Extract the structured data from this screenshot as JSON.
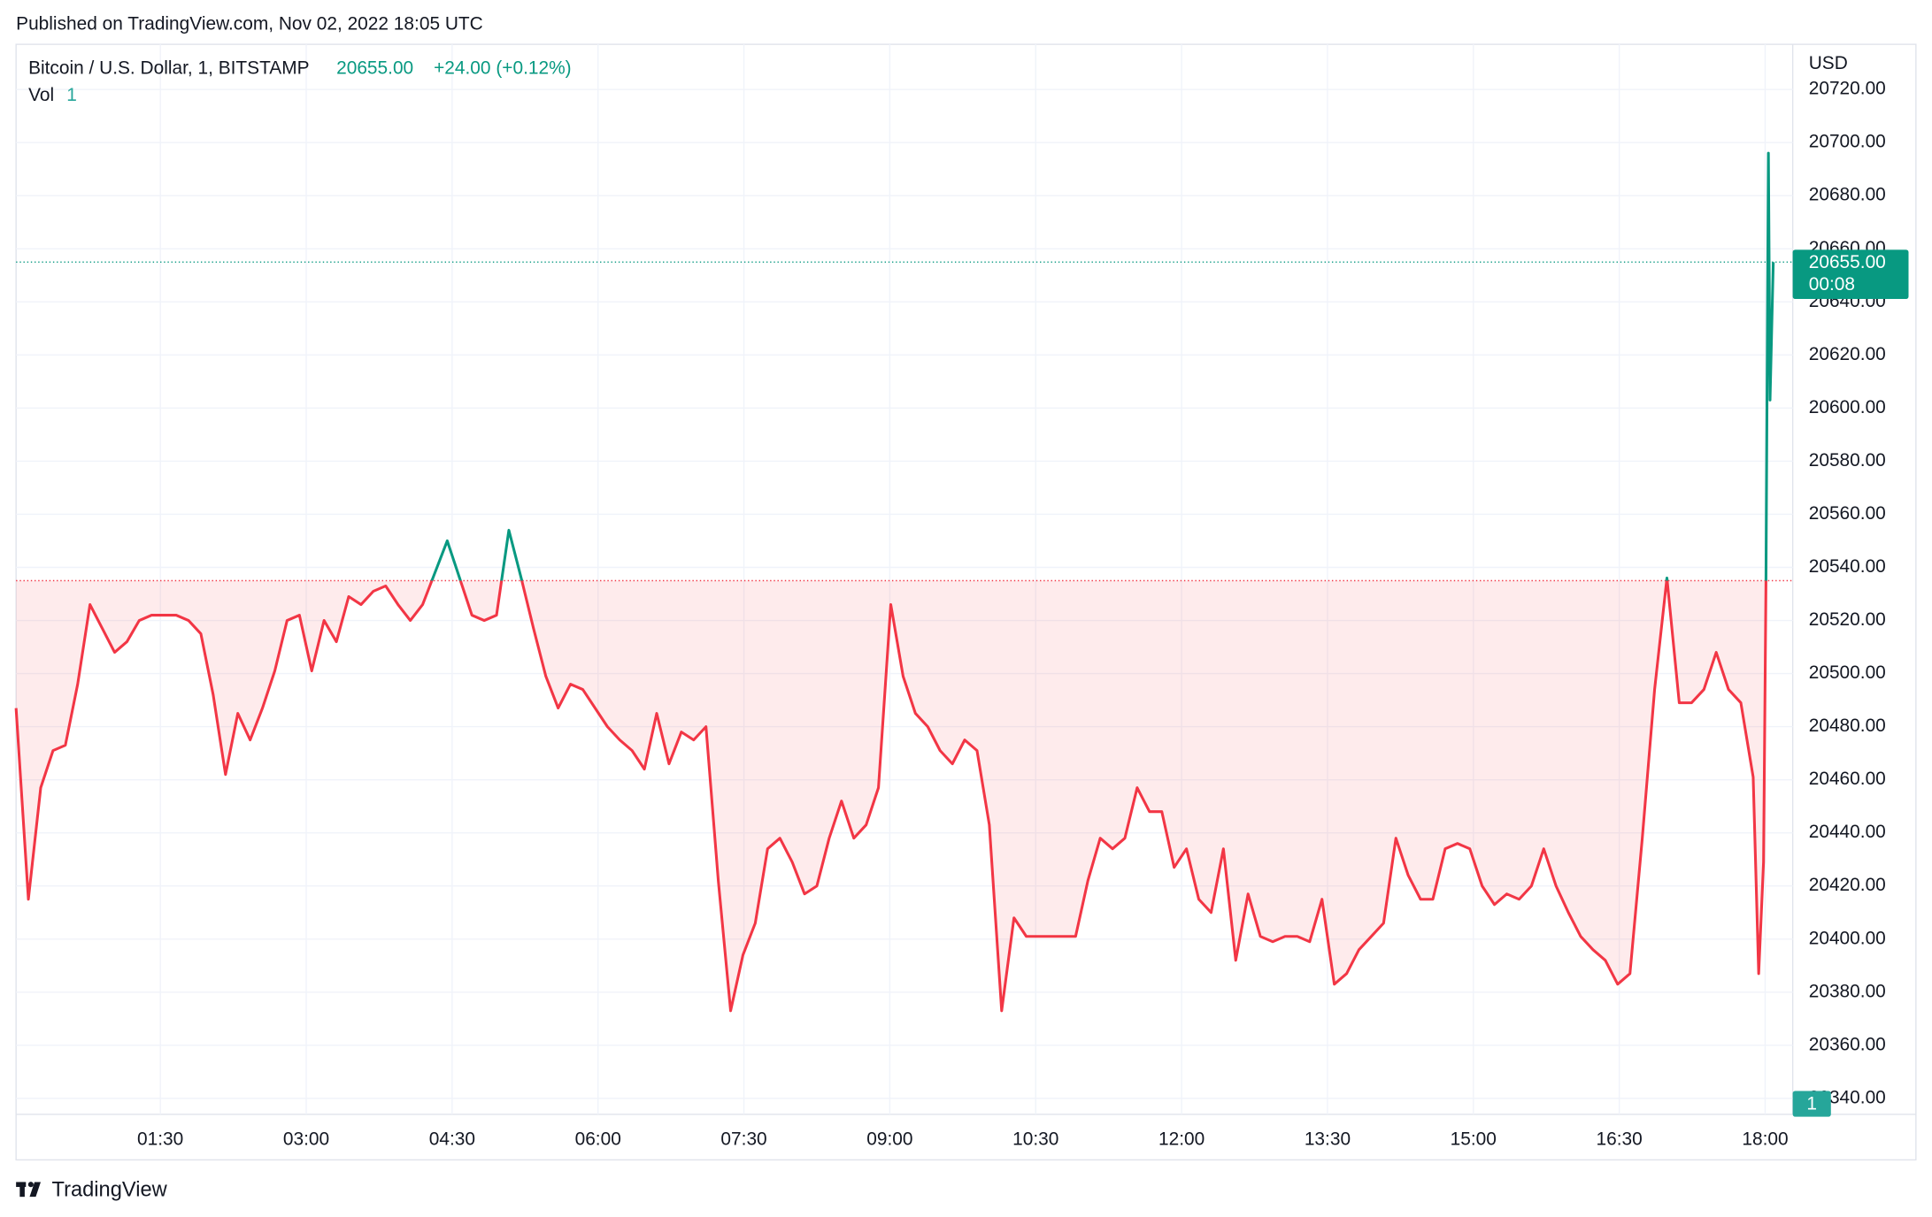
{
  "chart_data": {
    "type": "line",
    "source": "Published on TradingView.com, Nov 02, 2022 18:05 UTC",
    "title": "Bitcoin / U.S. Dollar, 1, BITSTAMP",
    "last_price": {
      "value": 20655,
      "label": "20655.00"
    },
    "change": "+24.00 (+0.12%)",
    "countdown": "00:08",
    "volume_label": "Vol",
    "volume": 1,
    "axis_unit": "USD",
    "footer": "TradingView",
    "baseline": 20535,
    "color_up": "#089981",
    "color_down": "#f23645",
    "grid": true,
    "xlim": [
      1,
      1097
    ],
    "ylim": [
      20334,
      20737
    ],
    "xticks": [
      {
        "value": 90,
        "label": "01:30"
      },
      {
        "value": 180,
        "label": "03:00"
      },
      {
        "value": 270,
        "label": "04:30"
      },
      {
        "value": 360,
        "label": "06:00"
      },
      {
        "value": 450,
        "label": "07:30"
      },
      {
        "value": 540,
        "label": "09:00"
      },
      {
        "value": 630,
        "label": "10:30"
      },
      {
        "value": 720,
        "label": "12:00"
      },
      {
        "value": 810,
        "label": "13:30"
      },
      {
        "value": 900,
        "label": "15:00"
      },
      {
        "value": 990,
        "label": "16:30"
      },
      {
        "value": 1080,
        "label": "18:00"
      }
    ],
    "yticks": [
      {
        "value": 20340,
        "label": "20340.00"
      },
      {
        "value": 20360,
        "label": "20360.00"
      },
      {
        "value": 20380,
        "label": "20380.00"
      },
      {
        "value": 20400,
        "label": "20400.00"
      },
      {
        "value": 20420,
        "label": "20420.00"
      },
      {
        "value": 20440,
        "label": "20440.00"
      },
      {
        "value": 20460,
        "label": "20460.00"
      },
      {
        "value": 20480,
        "label": "20480.00"
      },
      {
        "value": 20500,
        "label": "20500.00"
      },
      {
        "value": 20520,
        "label": "20520.00"
      },
      {
        "value": 20540,
        "label": "20540.00"
      },
      {
        "value": 20560,
        "label": "20560.00"
      },
      {
        "value": 20580,
        "label": "20580.00"
      },
      {
        "value": 20600,
        "label": "20600.00"
      },
      {
        "value": 20620,
        "label": "20620.00"
      },
      {
        "value": 20640,
        "label": "20640.00"
      },
      {
        "value": 20660,
        "label": "20660.00"
      },
      {
        "value": 20680,
        "label": "20680.00"
      },
      {
        "value": 20700,
        "label": "20700.00"
      },
      {
        "value": 20720,
        "label": "20720.00"
      }
    ],
    "x": [
      1,
      8.6,
      16.2,
      23.8,
      31.4,
      39,
      46.6,
      54.2,
      61.8,
      69.4,
      77,
      84.6,
      92.2,
      99.8,
      107.4,
      115,
      122.6,
      130.2,
      137.8,
      145.4,
      153,
      160.6,
      168.2,
      175.8,
      183.4,
      191,
      198.6,
      206.2,
      213.8,
      221.4,
      229,
      236.6,
      244.2,
      251.8,
      259.4,
      267,
      274.6,
      282.2,
      289.8,
      297.4,
      305,
      312.6,
      320.2,
      327.8,
      335.4,
      343,
      350.6,
      358.2,
      365.8,
      373.4,
      381,
      388.6,
      396.2,
      403.8,
      411.4,
      419,
      426.6,
      434.2,
      441.8,
      449.4,
      457,
      464.6,
      472.2,
      479.8,
      487.4,
      495,
      502.6,
      510.2,
      517.8,
      525.4,
      533,
      540.6,
      548.2,
      555.8,
      563.4,
      571,
      578.6,
      586.2,
      593.8,
      601.4,
      609,
      616.6,
      624.2,
      631.8,
      639.4,
      647,
      654.6,
      662.2,
      669.8,
      677.4,
      685,
      692.6,
      700.2,
      707.8,
      715.4,
      723,
      730.6,
      738.2,
      745.8,
      753.4,
      761,
      768.6,
      776.2,
      783.8,
      791.4,
      799,
      806.6,
      814.2,
      821.8,
      829.4,
      837,
      844.6,
      852.2,
      859.8,
      867.4,
      875,
      882.6,
      890.2,
      897.8,
      905.4,
      913,
      920.6,
      928.2,
      935.8,
      943.4,
      951,
      958.6,
      966.2,
      973.8,
      981.4,
      989,
      996.6,
      1004.2,
      1011.8,
      1019.4,
      1027,
      1034.6,
      1042.2,
      1049.8,
      1057.4,
      1065,
      1072.6,
      1076,
      1079,
      1080.5,
      1082,
      1083,
      1085
    ],
    "values": [
      20487,
      20415,
      20457,
      20471,
      20473,
      20496,
      20526,
      20517,
      20508,
      20512,
      20520,
      20522,
      20522,
      20522,
      20520,
      20515,
      20492,
      20462,
      20485,
      20475,
      20487,
      20501,
      20520,
      20522,
      20501,
      20520,
      20512,
      20529,
      20526,
      20531,
      20533,
      20526,
      20520,
      20526,
      20538,
      20550,
      20536,
      20522,
      20520,
      20522,
      20554,
      20536,
      20517,
      20499,
      20487,
      20496,
      20494,
      20487,
      20480,
      20475,
      20471,
      20464,
      20485,
      20466,
      20478,
      20475,
      20480,
      20422,
      20373,
      20394,
      20406,
      20434,
      20438,
      20429,
      20417,
      20420,
      20438,
      20452,
      20438,
      20443,
      20457,
      20526,
      20499,
      20485,
      20480,
      20471,
      20466,
      20475,
      20471,
      20443,
      20373,
      20408,
      20401,
      20401,
      20401,
      20401,
      20401,
      20422,
      20438,
      20434,
      20438,
      20457,
      20448,
      20448,
      20427,
      20434,
      20415,
      20410,
      20434,
      20392,
      20417,
      20401,
      20399,
      20401,
      20401,
      20399,
      20415,
      20383,
      20387,
      20396,
      20401,
      20406,
      20438,
      20424,
      20415,
      20415,
      20434,
      20436,
      20434,
      20420,
      20413,
      20417,
      20415,
      20420,
      20434,
      20420,
      20410,
      20401,
      20396,
      20392,
      20383,
      20387,
      20438,
      20494,
      20536,
      20489,
      20489,
      20494,
      20508,
      20494,
      20489,
      20461,
      20387,
      20429,
      20535,
      20696,
      20603,
      20655
    ]
  }
}
